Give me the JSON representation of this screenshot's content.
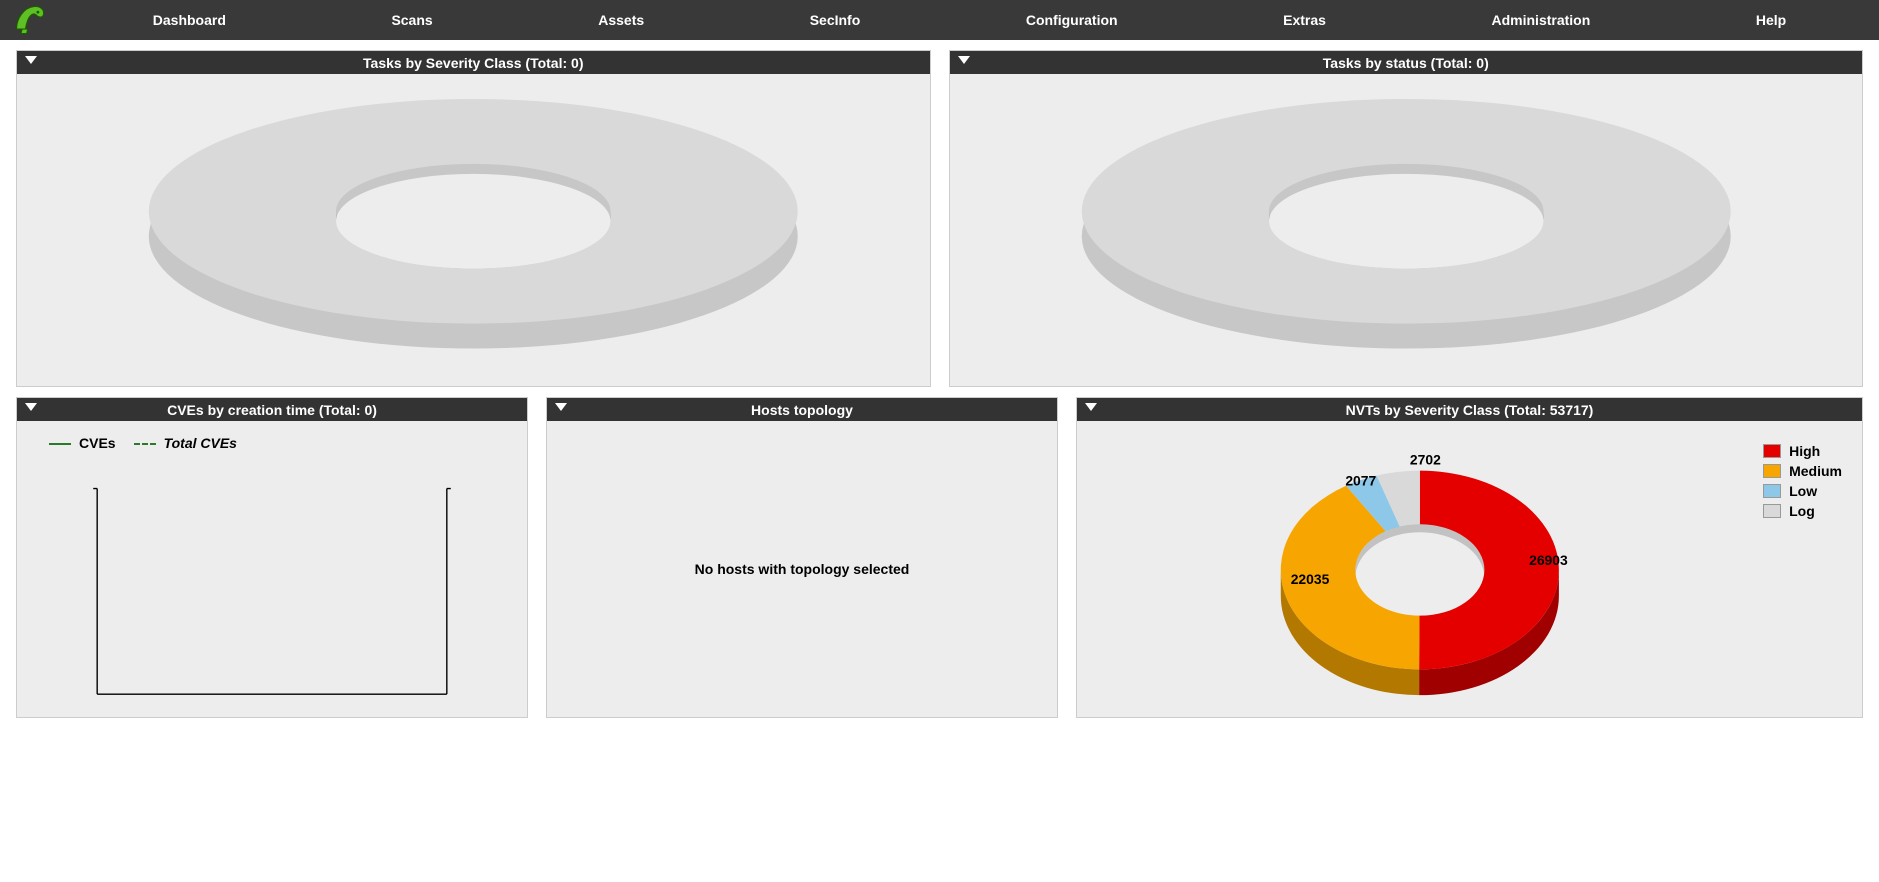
{
  "nav": {
    "items": [
      "Dashboard",
      "Scans",
      "Assets",
      "SecInfo",
      "Configuration",
      "Extras",
      "Administration",
      "Help"
    ]
  },
  "panels": {
    "tasks_severity": {
      "title": "Tasks by Severity Class (Total: 0)",
      "type": "donut",
      "empty": true,
      "empty_color": "#d9d9d9",
      "bottom_color": "#c7c7c7"
    },
    "tasks_status": {
      "title": "Tasks by status (Total: 0)",
      "type": "donut",
      "empty": true,
      "empty_color": "#d9d9d9",
      "bottom_color": "#c7c7c7"
    },
    "cves_time": {
      "title": "CVEs by creation time (Total: 0)",
      "type": "line",
      "legend": [
        {
          "label": "CVEs",
          "style": "solid",
          "color": "#2a7a2a"
        },
        {
          "label": "Total CVEs",
          "style": "dashed",
          "color": "#2a7a2a",
          "italic": true
        }
      ],
      "axis_color": "#000000"
    },
    "hosts_topology": {
      "title": "Hosts topology",
      "type": "graph",
      "empty_message": "No hosts with topology selected"
    },
    "nvts_severity": {
      "title": "NVTs by Severity Class (Total: 53717)",
      "type": "donut",
      "total": 53717,
      "slices": [
        {
          "label": "High",
          "value": 26903,
          "color": "#e50000",
          "dark": "#a00000"
        },
        {
          "label": "Medium",
          "value": 22035,
          "color": "#f7a500",
          "dark": "#b37800"
        },
        {
          "label": "Low",
          "value": 2077,
          "color": "#8ec8e8",
          "dark": "#5a9cc2"
        },
        {
          "label": "Log",
          "value": 2702,
          "color": "#d9d9d9",
          "dark": "#b0b0b0"
        }
      ],
      "label_fontsize": 14,
      "label_fontweight": "bold"
    }
  },
  "colors": {
    "nav_bg": "#393939",
    "panel_header_bg": "#333333",
    "panel_bg": "#ededed"
  }
}
